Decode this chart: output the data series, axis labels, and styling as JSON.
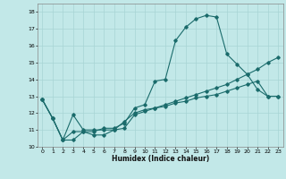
{
  "xlabel": "Humidex (Indice chaleur)",
  "bg_color": "#c2e8e8",
  "line_color": "#1a6b6b",
  "grid_color": "#a8d4d4",
  "xlim": [
    -0.5,
    23.5
  ],
  "ylim": [
    10,
    18.5
  ],
  "xticks": [
    0,
    1,
    2,
    3,
    4,
    5,
    6,
    7,
    8,
    9,
    10,
    11,
    12,
    13,
    14,
    15,
    16,
    17,
    18,
    19,
    20,
    21,
    22,
    23
  ],
  "yticks": [
    10,
    11,
    12,
    13,
    14,
    15,
    16,
    17,
    18
  ],
  "series": [
    {
      "x": [
        0,
        1,
        2,
        3,
        4,
        5,
        6,
        7,
        8,
        9,
        10,
        11,
        12,
        13,
        14,
        15,
        16,
        17,
        18,
        19,
        20,
        21,
        22,
        23
      ],
      "y": [
        12.8,
        11.7,
        10.4,
        10.4,
        10.9,
        10.9,
        11.1,
        11.1,
        11.4,
        12.3,
        12.5,
        13.9,
        14.0,
        16.3,
        17.1,
        17.6,
        17.8,
        17.7,
        15.5,
        14.9,
        14.3,
        13.4,
        13.0,
        13.0
      ]
    },
    {
      "x": [
        0,
        1,
        2,
        3,
        4,
        5,
        6,
        7,
        8,
        9,
        10,
        11,
        12,
        13,
        14,
        15,
        16,
        17,
        18,
        19,
        20,
        21,
        22,
        23
      ],
      "y": [
        12.8,
        11.7,
        10.4,
        11.9,
        11.0,
        11.0,
        11.0,
        11.0,
        11.5,
        12.0,
        12.2,
        12.3,
        12.5,
        12.7,
        12.9,
        13.1,
        13.3,
        13.5,
        13.7,
        14.0,
        14.3,
        14.6,
        15.0,
        15.3
      ]
    },
    {
      "x": [
        0,
        1,
        2,
        3,
        4,
        5,
        6,
        7,
        8,
        9,
        10,
        11,
        12,
        13,
        14,
        15,
        16,
        17,
        18,
        19,
        20,
        21,
        22,
        23
      ],
      "y": [
        12.8,
        11.7,
        10.4,
        10.9,
        10.9,
        10.7,
        10.7,
        11.0,
        11.1,
        11.9,
        12.1,
        12.3,
        12.4,
        12.6,
        12.7,
        12.9,
        13.0,
        13.1,
        13.3,
        13.5,
        13.7,
        13.9,
        13.0,
        13.0
      ]
    }
  ]
}
